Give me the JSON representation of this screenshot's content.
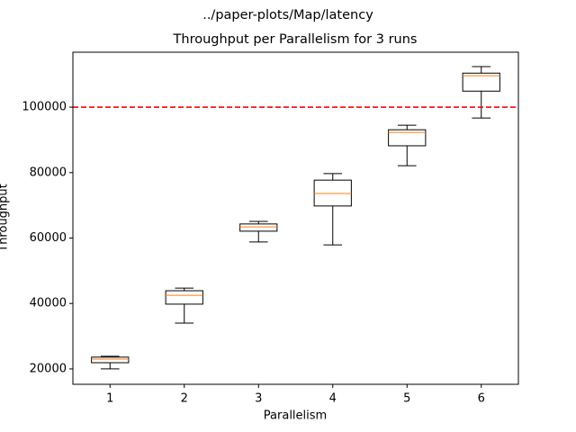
{
  "chart_data": {
    "type": "box",
    "suptitle": "../paper-plots/Map/latency",
    "title": "Throughput per Parallelism for 3 runs",
    "xlabel": "Parallelism",
    "ylabel": "Throughput",
    "x": [
      1,
      2,
      3,
      4,
      5,
      6
    ],
    "xlim": [
      0.5,
      6.5
    ],
    "xticks": [
      1,
      2,
      3,
      4,
      5,
      6
    ],
    "ylim": [
      15300,
      116800
    ],
    "yticks": [
      20000,
      40000,
      60000,
      80000,
      100000
    ],
    "box_color": "#000000",
    "median_color": "#ff7f0e",
    "boxes": [
      {
        "whislo": 20000,
        "q1": 21900,
        "med": 23000,
        "q3": 23600,
        "whishi": 23850
      },
      {
        "whislo": 34000,
        "q1": 39800,
        "med": 42500,
        "q3": 43900,
        "whishi": 44700
      },
      {
        "whislo": 58800,
        "q1": 62100,
        "med": 63400,
        "q3": 64300,
        "whishi": 65100
      },
      {
        "whislo": 57900,
        "q1": 69800,
        "med": 73600,
        "q3": 77700,
        "whishi": 79700
      },
      {
        "whislo": 82100,
        "q1": 88200,
        "med": 92300,
        "q3": 93100,
        "whishi": 94500
      },
      {
        "whislo": 96700,
        "q1": 104900,
        "med": 109600,
        "q3": 110400,
        "whishi": 112400
      }
    ],
    "hline": {
      "y": 100000,
      "color": "#ff0000",
      "dashed": true
    }
  }
}
